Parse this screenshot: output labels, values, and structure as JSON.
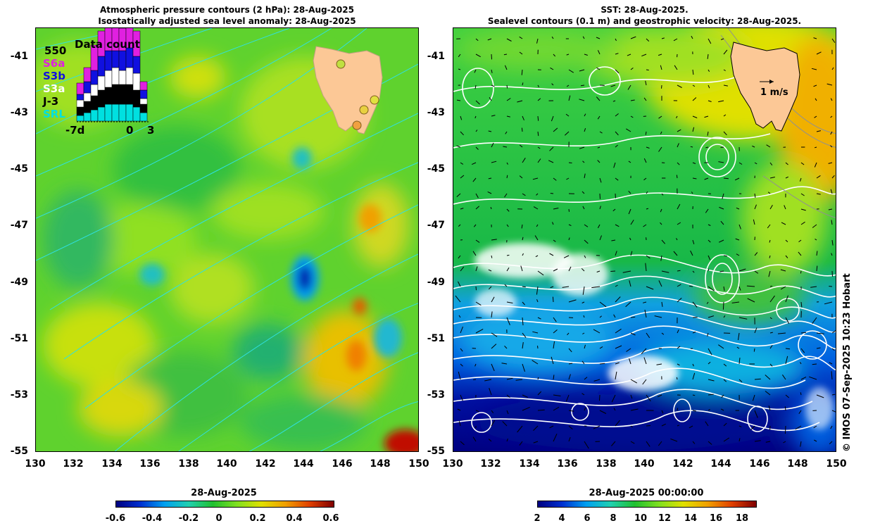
{
  "left_panel": {
    "title_line1": "Atmospheric pressure contours (2 hPa): 28-Aug-2025",
    "title_line2": "Isostatically adjusted sea level anomaly: 28-Aug-2025",
    "inset": {
      "count_max": "550",
      "title": "Data count",
      "missions": [
        {
          "label": "S6a",
          "color": "#e020e0"
        },
        {
          "label": "S3b",
          "color": "#1010e0"
        },
        {
          "label": "S3a",
          "color": "#ffffff"
        },
        {
          "label": "J-3",
          "color": "#000000"
        },
        {
          "label": "SRL",
          "color": "#00e0e0"
        }
      ],
      "axis_labels": [
        "-7d",
        "0",
        "3"
      ]
    }
  },
  "right_panel": {
    "title_line1": "SST: 28-Aug-2025.",
    "title_line2": "Sealevel contours (0.1 m) and geostrophic velocity: 28-Aug-2025.",
    "velocity_label": "1 m/s"
  },
  "axes": {
    "lat_ticks": [
      "-41",
      "-43",
      "-45",
      "-47",
      "-49",
      "-51",
      "-53",
      "-55"
    ],
    "lon_ticks": [
      "130",
      "132",
      "134",
      "136",
      "138",
      "140",
      "142",
      "144",
      "146",
      "148",
      "150"
    ]
  },
  "left_colorbar": {
    "date": "28-Aug-2025",
    "ticks": [
      "-0.6",
      "-0.4",
      "-0.2",
      "0",
      "0.2",
      "0.4",
      "0.6"
    ]
  },
  "right_colorbar": {
    "date": "28-Aug-2025 00:00:00",
    "ticks": [
      "2",
      "4",
      "6",
      "8",
      "10",
      "12",
      "14",
      "16",
      "18"
    ]
  },
  "copyright": "© IMOS 07-Sep-2025 10:23 Hobart",
  "colors": {
    "land": "#fcc896",
    "sla_scale": [
      "#000080",
      "#0030d0",
      "#00a0f0",
      "#20d0b0",
      "#20c030",
      "#80e020",
      "#e0e000",
      "#f0a000",
      "#e04000",
      "#800000"
    ],
    "sst_scale": [
      "#000080",
      "#0030d0",
      "#00a0f0",
      "#20d0b0",
      "#20c030",
      "#80e020",
      "#e0e000",
      "#f0a000",
      "#e04000",
      "#800000"
    ]
  }
}
